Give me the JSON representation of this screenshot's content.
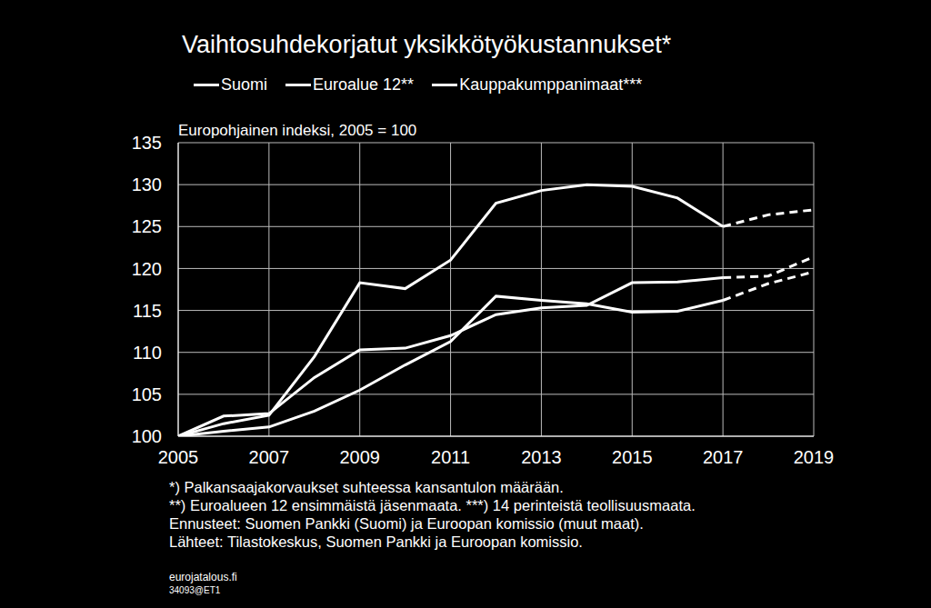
{
  "chart_data": {
    "type": "line",
    "title": "Vaihtosuhdekorjatut yksikkötyökustannukset*",
    "subtitle": "Europohjainen indeksi, 2005 = 100",
    "x": [
      2005,
      2006,
      2007,
      2008,
      2009,
      2010,
      2011,
      2012,
      2013,
      2014,
      2015,
      2016,
      2017,
      2018,
      2019
    ],
    "series": [
      {
        "name": "Suomi",
        "color": "#ffffff",
        "values": [
          100,
          101.5,
          102.5,
          109.5,
          118.3,
          117.6,
          121,
          127.8,
          129.3,
          130,
          129.8,
          128.4,
          125,
          126.4,
          127
        ]
      },
      {
        "name": "Euroalue 12**",
        "color": "#ffffff",
        "values": [
          100,
          102.4,
          102.7,
          107,
          110.3,
          110.5,
          112,
          114.5,
          115.3,
          115.6,
          118.3,
          118.4,
          118.9,
          119.1,
          121.4
        ]
      },
      {
        "name": "Kauppakumppanimaat***",
        "color": "#ffffff",
        "values": [
          100,
          100.6,
          101.1,
          103,
          105.5,
          108.5,
          111.3,
          116.7,
          116.2,
          115.8,
          114.8,
          114.9,
          116.2,
          118.2,
          119.6
        ]
      }
    ],
    "forecast_from": 2017,
    "xlim": [
      2005,
      2019
    ],
    "xticks": [
      2005,
      2007,
      2009,
      2011,
      2013,
      2015,
      2017,
      2019
    ],
    "ylim": [
      100,
      135
    ],
    "yticks": [
      100,
      105,
      110,
      115,
      120,
      125,
      130,
      135
    ],
    "grid": true,
    "legend": "top",
    "notes": [
      "*) Palkansaajakorvaukset suhteessa kansantulon määrään.",
      "**) Euroalueen 12 ensimmäistä jäsenmaata. ***) 14 perinteistä teollisuusmaata.",
      "Ennusteet: Suomen Pankki (Suomi) ja Euroopan komissio (muut maat).",
      "Lähteet: Tilastokeskus, Suomen Pankki ja Euroopan komissio."
    ],
    "source": "eurojatalous.fi",
    "code": "34093@ET1"
  }
}
